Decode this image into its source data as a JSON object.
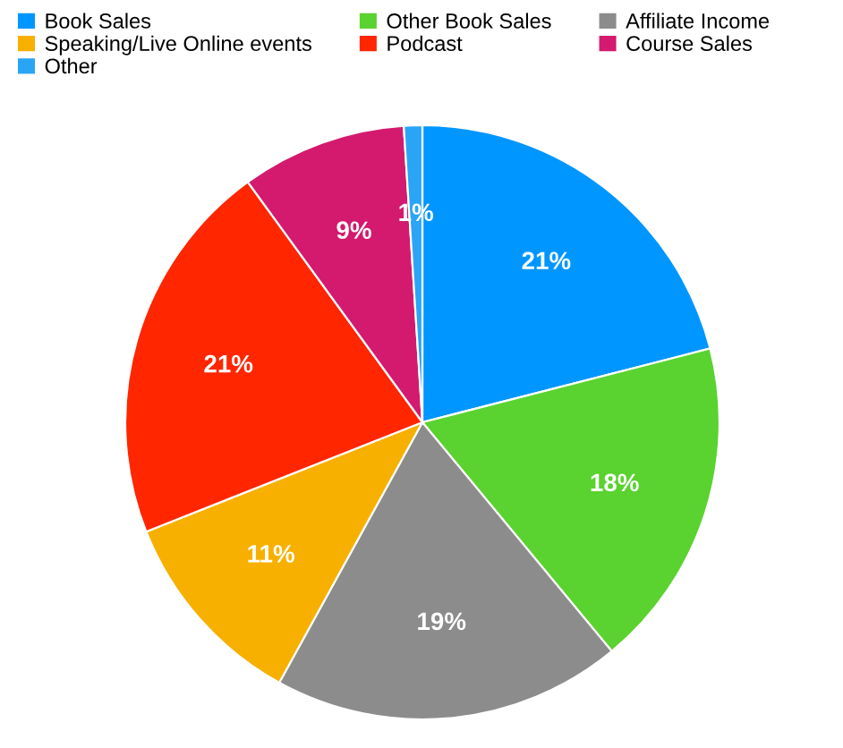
{
  "chart_data": {
    "type": "pie",
    "categories": [
      "Book Sales",
      "Other Book Sales",
      "Affiliate Income",
      "Speaking/Live Online events",
      "Podcast",
      "Course Sales",
      "Other"
    ],
    "values": [
      21,
      18,
      19,
      11,
      21,
      9,
      1
    ],
    "colors": [
      "#0096ff",
      "#5ad22f",
      "#8c8c8c",
      "#f8b000",
      "#ff2600",
      "#d31a6e",
      "#2aa5f5"
    ],
    "value_labels": [
      "21%",
      "18%",
      "19%",
      "11%",
      "21%",
      "9%",
      "1%"
    ],
    "legend": "top left"
  }
}
